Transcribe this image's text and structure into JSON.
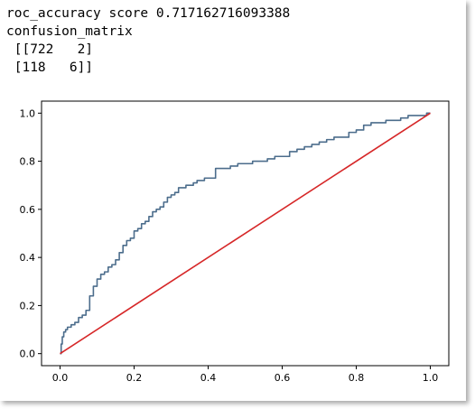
{
  "output": {
    "roc_line": "roc_accuracy score 0.717162716093388",
    "cm_label": "confusion_matrix",
    "cm_row_1": " [[722   2]",
    "cm_row_2": " [118   6]]"
  },
  "chart_data": {
    "type": "line",
    "title": "",
    "xlabel": "",
    "ylabel": "",
    "xlim": [
      -0.05,
      1.05
    ],
    "ylim": [
      -0.05,
      1.05
    ],
    "grid": false,
    "xticks": [
      "0.0",
      "0.2",
      "0.4",
      "0.6",
      "0.8",
      "1.0"
    ],
    "yticks": [
      "0.0",
      "0.2",
      "0.4",
      "0.6",
      "0.8",
      "1.0"
    ],
    "series": [
      {
        "color": "#4c6d8c",
        "step": true,
        "x": [
          0.0,
          0.003,
          0.006,
          0.01,
          0.015,
          0.02,
          0.03,
          0.04,
          0.05,
          0.06,
          0.07,
          0.08,
          0.09,
          0.1,
          0.11,
          0.12,
          0.13,
          0.14,
          0.15,
          0.16,
          0.17,
          0.18,
          0.19,
          0.2,
          0.21,
          0.22,
          0.23,
          0.24,
          0.25,
          0.26,
          0.27,
          0.28,
          0.29,
          0.3,
          0.31,
          0.32,
          0.33,
          0.34,
          0.35,
          0.36,
          0.37,
          0.38,
          0.39,
          0.4,
          0.42,
          0.43,
          0.44,
          0.46,
          0.48,
          0.5,
          0.52,
          0.54,
          0.56,
          0.58,
          0.6,
          0.62,
          0.64,
          0.66,
          0.68,
          0.7,
          0.72,
          0.74,
          0.76,
          0.78,
          0.8,
          0.82,
          0.84,
          0.86,
          0.88,
          0.9,
          0.92,
          0.94,
          0.96,
          0.98,
          0.99,
          1.0
        ],
        "y": [
          0.0,
          0.04,
          0.07,
          0.09,
          0.1,
          0.11,
          0.12,
          0.13,
          0.15,
          0.16,
          0.18,
          0.24,
          0.28,
          0.31,
          0.33,
          0.34,
          0.36,
          0.37,
          0.39,
          0.42,
          0.45,
          0.47,
          0.48,
          0.51,
          0.52,
          0.54,
          0.55,
          0.57,
          0.59,
          0.6,
          0.61,
          0.63,
          0.65,
          0.66,
          0.67,
          0.69,
          0.69,
          0.7,
          0.7,
          0.71,
          0.72,
          0.72,
          0.73,
          0.73,
          0.77,
          0.77,
          0.77,
          0.78,
          0.79,
          0.79,
          0.8,
          0.8,
          0.81,
          0.82,
          0.82,
          0.84,
          0.85,
          0.86,
          0.87,
          0.88,
          0.89,
          0.9,
          0.9,
          0.92,
          0.93,
          0.95,
          0.96,
          0.96,
          0.97,
          0.97,
          0.98,
          0.99,
          0.99,
          0.99,
          1.0,
          1.0
        ]
      },
      {
        "color": "#d62728",
        "x": [
          0.0,
          1.0
        ],
        "y": [
          0.0,
          1.0
        ]
      }
    ]
  }
}
